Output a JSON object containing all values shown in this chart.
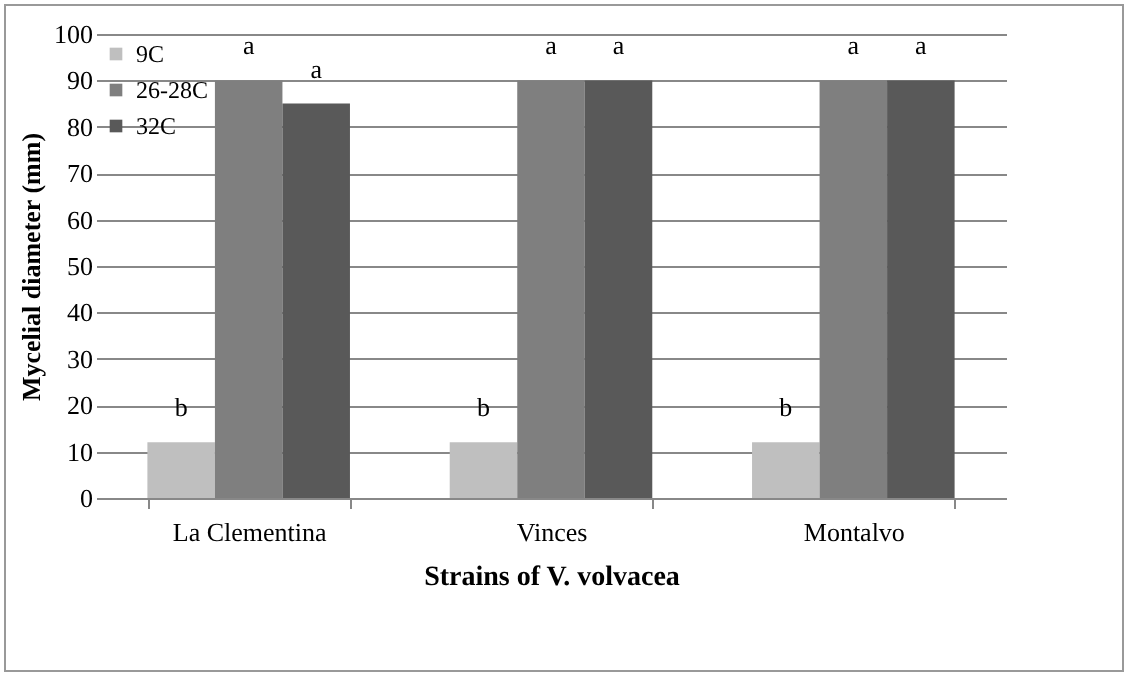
{
  "chart_data": {
    "type": "bar",
    "xlabel": "Strains of V. volvacea",
    "ylabel": "Mycelial diameter (mm)",
    "categories": [
      "La Clementina",
      "Vinces",
      "Montalvo"
    ],
    "series": [
      {
        "name": "9C",
        "color": "#bfbfbf",
        "values": [
          12,
          12,
          12
        ],
        "value_labels": [
          "b",
          "b",
          "b"
        ]
      },
      {
        "name": "26-28C",
        "color": "#7f7f7f",
        "values": [
          90,
          90,
          90
        ],
        "value_labels": [
          "a",
          "a",
          "a"
        ]
      },
      {
        "name": "32C",
        "color": "#595959",
        "values": [
          85,
          90,
          90
        ],
        "value_labels": [
          "a",
          "a",
          "a"
        ]
      }
    ],
    "ylim": [
      0,
      100
    ],
    "yticks": [
      0,
      10,
      20,
      30,
      40,
      50,
      60,
      70,
      80,
      90,
      100
    ],
    "grid": "y",
    "legend": "top left"
  }
}
